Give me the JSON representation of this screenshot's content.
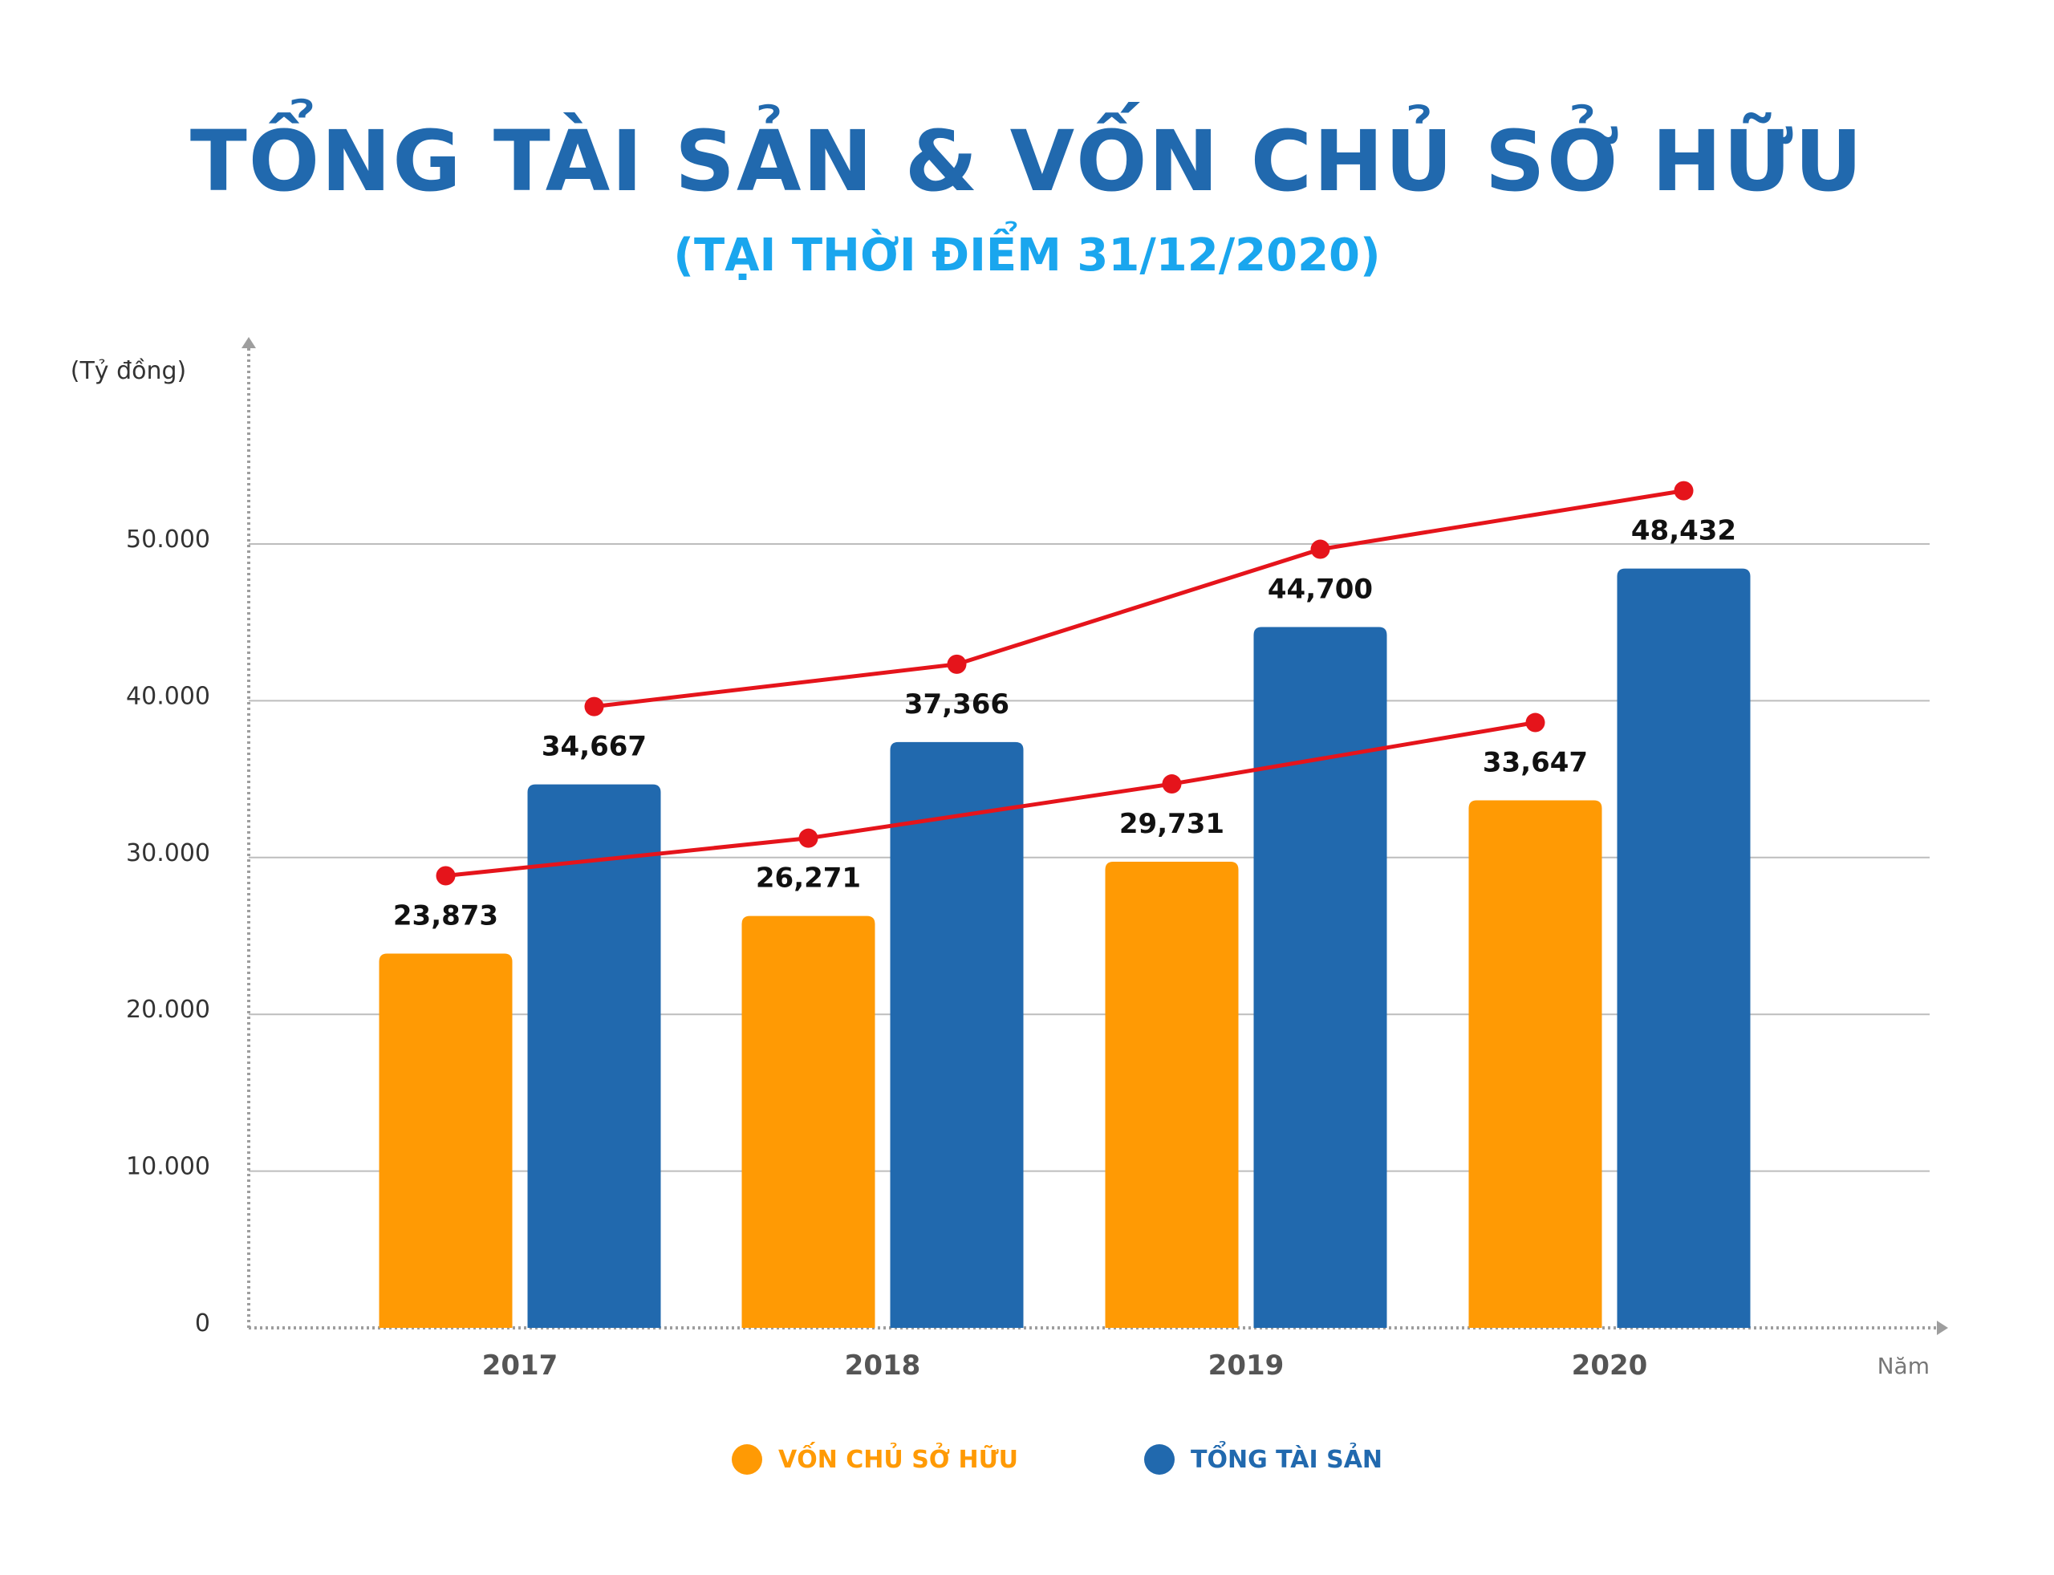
{
  "title": "TỔNG TÀI SẢN & VỐN CHỦ SỞ HỮU",
  "subtitle": "(TẠI THỜI ĐIỂM 31/12/2020)",
  "colors": {
    "equity": "#FF9A04",
    "assets": "#2169AE",
    "trend": "#E5141B",
    "title": "#2169AE",
    "subtitle": "#1AA6EE",
    "grid": "#BDBDBD"
  },
  "chart_data": {
    "type": "bar",
    "categories": [
      "2017",
      "2018",
      "2019",
      "2020"
    ],
    "series": [
      {
        "name": "VỐN CHỦ SỞ HỮU",
        "color": "#FF9A04",
        "values": [
          23873,
          26271,
          29731,
          33647
        ],
        "labels": [
          "23,873",
          "26,271",
          "29,731",
          "33,647"
        ]
      },
      {
        "name": "TỔNG TÀI SẢN",
        "color": "#2169AE",
        "values": [
          34667,
          37366,
          44700,
          48432
        ],
        "labels": [
          "34,667",
          "37,366",
          "44,700",
          "48,432"
        ]
      }
    ],
    "trend_lines": true,
    "xlabel": "Năm",
    "ylabel": "(Tỷ đồng)",
    "ylim": [
      0,
      50000
    ],
    "yticks": [
      0,
      10000,
      20000,
      30000,
      40000,
      50000
    ],
    "ytick_labels": [
      "0",
      "10.000",
      "20.000",
      "30.000",
      "40.000",
      "50.000"
    ],
    "grid": true,
    "legend": "bottom-center"
  }
}
